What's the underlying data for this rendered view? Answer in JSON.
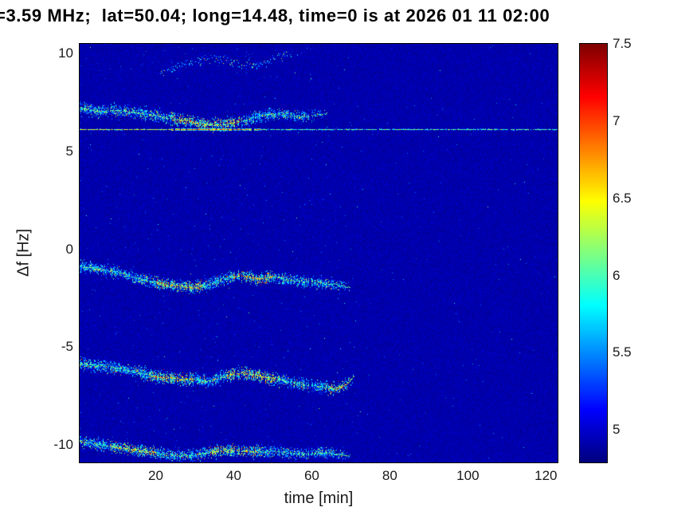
{
  "chart_data": {
    "type": "heatmap",
    "title": "=3.59 MHz;  lat=50.04; long=14.48, time=0 is at 2026 01 11 02:00",
    "xlabel": "time [min]",
    "ylabel": "Δf [Hz]",
    "xlim": [
      0.5,
      123
    ],
    "ylim": [
      -10.9,
      10.5
    ],
    "xticks": [
      20,
      40,
      60,
      80,
      100,
      120
    ],
    "yticks": [
      -10,
      -5,
      0,
      5,
      10
    ],
    "colorbar": {
      "colormap": "jet",
      "min": 4.79,
      "max": 7.5,
      "ticks": [
        5,
        5.5,
        6,
        6.5,
        7,
        7.5
      ]
    },
    "background_level": 4.87,
    "signal_end_time_min": 72,
    "carrier_line": {
      "delta_f_hz": 6.15,
      "t_start": 0.5,
      "t_end": 123,
      "bright_interval": [
        24,
        47
      ]
    },
    "traces": [
      {
        "name": "upper-sideband",
        "t_start": 0.5,
        "t_end": 64,
        "density": 8,
        "spread": 0.3,
        "bright_intervals": [
          [
            24,
            42
          ]
        ],
        "points": [
          [
            0.5,
            7.25
          ],
          [
            5,
            7.05
          ],
          [
            10,
            7.1
          ],
          [
            15,
            7.0
          ],
          [
            20,
            6.85
          ],
          [
            25,
            6.65
          ],
          [
            30,
            6.5
          ],
          [
            34,
            6.35
          ],
          [
            38,
            6.4
          ],
          [
            43,
            6.6
          ],
          [
            47,
            6.85
          ],
          [
            52,
            6.95
          ],
          [
            57,
            6.8
          ],
          [
            61,
            6.85
          ],
          [
            64,
            6.95
          ]
        ]
      },
      {
        "name": "upper-faint-echo",
        "t_start": 21,
        "t_end": 58,
        "density": 1.5,
        "spread": 0.22,
        "bright_intervals": [],
        "points": [
          [
            21,
            9.0
          ],
          [
            26,
            9.4
          ],
          [
            31,
            9.7
          ],
          [
            36,
            9.8
          ],
          [
            41,
            9.5
          ],
          [
            46,
            9.4
          ],
          [
            51,
            9.8
          ],
          [
            58,
            10.1
          ]
        ]
      },
      {
        "name": "mid-sideband",
        "t_start": 0.5,
        "t_end": 70,
        "density": 9,
        "spread": 0.28,
        "bright_intervals": [
          [
            20,
            32
          ],
          [
            40,
            50
          ]
        ],
        "points": [
          [
            0.5,
            -0.85
          ],
          [
            5,
            -1.0
          ],
          [
            10,
            -1.15
          ],
          [
            15,
            -1.45
          ],
          [
            20,
            -1.7
          ],
          [
            25,
            -1.85
          ],
          [
            30,
            -1.95
          ],
          [
            34,
            -1.75
          ],
          [
            38,
            -1.45
          ],
          [
            42,
            -1.35
          ],
          [
            46,
            -1.5
          ],
          [
            50,
            -1.4
          ],
          [
            54,
            -1.55
          ],
          [
            58,
            -1.65
          ],
          [
            62,
            -1.7
          ],
          [
            66,
            -1.8
          ],
          [
            70,
            -1.95
          ]
        ]
      },
      {
        "name": "lower-sideband",
        "t_start": 0.5,
        "t_end": 71,
        "density": 9.5,
        "spread": 0.3,
        "bright_intervals": [
          [
            18,
            30
          ],
          [
            38,
            52
          ],
          [
            64,
            71
          ]
        ],
        "points": [
          [
            0.5,
            -5.8
          ],
          [
            5,
            -5.95
          ],
          [
            10,
            -6.05
          ],
          [
            15,
            -6.25
          ],
          [
            20,
            -6.5
          ],
          [
            25,
            -6.6
          ],
          [
            30,
            -6.65
          ],
          [
            34,
            -6.75
          ],
          [
            38,
            -6.45
          ],
          [
            42,
            -6.3
          ],
          [
            46,
            -6.45
          ],
          [
            50,
            -6.6
          ],
          [
            54,
            -6.75
          ],
          [
            58,
            -6.9
          ],
          [
            62,
            -7.0
          ],
          [
            66,
            -7.15
          ],
          [
            69,
            -6.9
          ],
          [
            71,
            -6.45
          ]
        ]
      },
      {
        "name": "bottom-sideband",
        "t_start": 0.5,
        "t_end": 70,
        "density": 8.5,
        "spread": 0.28,
        "bright_intervals": [
          [
            8,
            20
          ],
          [
            34,
            46
          ]
        ],
        "points": [
          [
            0.5,
            -9.8
          ],
          [
            5,
            -9.95
          ],
          [
            10,
            -10.1
          ],
          [
            15,
            -10.25
          ],
          [
            20,
            -10.4
          ],
          [
            25,
            -10.55
          ],
          [
            30,
            -10.5
          ],
          [
            34,
            -10.35
          ],
          [
            38,
            -10.25
          ],
          [
            42,
            -10.3
          ],
          [
            46,
            -10.35
          ],
          [
            50,
            -10.3
          ],
          [
            54,
            -10.4
          ],
          [
            58,
            -10.45
          ],
          [
            62,
            -10.4
          ],
          [
            66,
            -10.45
          ],
          [
            70,
            -10.55
          ]
        ]
      }
    ]
  }
}
